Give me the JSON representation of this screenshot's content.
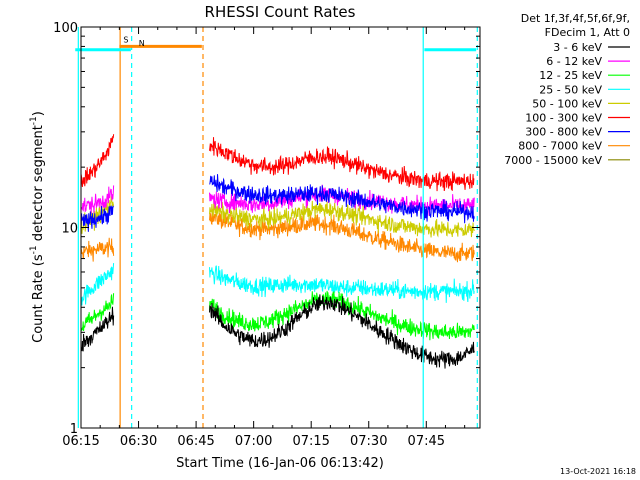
{
  "chart_data": {
    "type": "line",
    "title": "RHESSI Count Rates",
    "xlabel": "Start Time (16-Jan-06 06:13:42)",
    "ylabel_main": "Count Rate (s",
    "ylabel_sup": "-1",
    "ylabel_mid": " detector segment",
    "ylabel_sup2": "-1",
    "ylabel_end": ")",
    "y_scale": "log",
    "ylim": [
      1,
      100
    ],
    "xlim_minutes": [
      375,
      479
    ],
    "x_ticks": [
      {
        "minute": 375,
        "label": "06:15"
      },
      {
        "minute": 390,
        "label": "06:30"
      },
      {
        "minute": 405,
        "label": "06:45"
      },
      {
        "minute": 420,
        "label": "07:00"
      },
      {
        "minute": 435,
        "label": "07:15"
      },
      {
        "minute": 450,
        "label": "07:30"
      },
      {
        "minute": 465,
        "label": "07:45"
      }
    ],
    "y_ticks": [
      {
        "value": 1,
        "label": "1"
      },
      {
        "value": 10,
        "label": "10"
      },
      {
        "value": 100,
        "label": "100"
      }
    ],
    "legend_header": [
      "Det 1f,3f,4f,5f,6f,9f,",
      "FDecim 1, Att 0"
    ],
    "legend_placement": "right",
    "series": [
      {
        "name": "3 - 6 keV",
        "color": "#000000",
        "segments": [
          {
            "x": [
              374,
              376,
              378,
              380,
              382,
              383.5
            ],
            "y": [
              2.5,
              2.7,
              2.9,
              3.1,
              3.4,
              3.7
            ]
          },
          {
            "x": [
              408.5,
              412,
              416,
              420,
              424,
              428,
              432,
              436,
              440,
              444,
              448,
              452,
              456,
              460,
              464,
              468,
              472,
              475,
              477.5
            ],
            "y": [
              4.0,
              3.3,
              2.9,
              2.7,
              2.8,
              3.1,
              3.6,
              4.1,
              4.3,
              3.9,
              3.5,
              3.1,
              2.8,
              2.5,
              2.3,
              2.2,
              2.2,
              2.3,
              2.5
            ]
          }
        ]
      },
      {
        "name": "6 - 12 keV",
        "color": "#ff00ff",
        "segments": [
          {
            "x": [
              374,
              376,
              378,
              380,
              382,
              383.5
            ],
            "y": [
              12.5,
              12.8,
              13.0,
              13.4,
              14.0,
              14.8
            ]
          },
          {
            "x": [
              408.5,
              412,
              416,
              420,
              424,
              428,
              432,
              436,
              440,
              444,
              448,
              452,
              456,
              460,
              464,
              468,
              472,
              475,
              477.5
            ],
            "y": [
              14.0,
              13.5,
              13.3,
              13.0,
              13.2,
              13.6,
              14.2,
              14.6,
              14.6,
              14.2,
              13.8,
              13.5,
              13.2,
              13.0,
              12.9,
              12.8,
              12.8,
              12.8,
              12.9
            ]
          }
        ]
      },
      {
        "name": "12 - 25 keV",
        "color": "#00ff00",
        "segments": [
          {
            "x": [
              374,
              376,
              378,
              380,
              382,
              383.5
            ],
            "y": [
              3.0,
              3.3,
              3.5,
              3.8,
              4.0,
              4.3
            ]
          },
          {
            "x": [
              408.5,
              412,
              416,
              420,
              424,
              428,
              432,
              436,
              440,
              444,
              448,
              452,
              456,
              460,
              464,
              468,
              472,
              475,
              477.5
            ],
            "y": [
              4.2,
              3.7,
              3.4,
              3.3,
              3.4,
              3.7,
              4.0,
              4.3,
              4.4,
              4.2,
              3.9,
              3.6,
              3.4,
              3.2,
              3.1,
              3.0,
              3.0,
              3.0,
              3.1
            ]
          }
        ]
      },
      {
        "name": "25 - 50 keV",
        "color": "#00ffff",
        "segments": [
          {
            "x": [
              374,
              376,
              378,
              380,
              382,
              383.5
            ],
            "y": [
              4.2,
              4.6,
              5.0,
              5.4,
              5.8,
              6.2
            ]
          },
          {
            "x": [
              408.5,
              412,
              416,
              420,
              424,
              428,
              432,
              436,
              440,
              444,
              448,
              452,
              456,
              460,
              464,
              468,
              472,
              475,
              477.5
            ],
            "y": [
              6.0,
              5.6,
              5.3,
              5.1,
              5.1,
              5.2,
              5.2,
              5.2,
              5.1,
              5.0,
              5.0,
              4.9,
              4.9,
              4.8,
              4.8,
              4.8,
              4.8,
              4.8,
              4.9
            ]
          }
        ]
      },
      {
        "name": "50 - 100 keV",
        "color": "#cccc00",
        "segments": [
          {
            "x": [
              374,
              376,
              378,
              380,
              382,
              383.5
            ],
            "y": [
              10.0,
              10.5,
              11.0,
              11.8,
              12.5,
              13.5
            ]
          },
          {
            "x": [
              408.5,
              412,
              416,
              420,
              424,
              428,
              432,
              436,
              440,
              444,
              448,
              452,
              456,
              460,
              464,
              468,
              472,
              475,
              477.5
            ],
            "y": [
              12.5,
              11.8,
              11.3,
              11.0,
              11.0,
              11.3,
              11.8,
              12.3,
              12.3,
              11.8,
              11.3,
              10.8,
              10.4,
              10.1,
              9.9,
              9.8,
              9.7,
              9.7,
              9.8
            ]
          }
        ]
      },
      {
        "name": "100 - 300 keV",
        "color": "#ff0000",
        "segments": [
          {
            "x": [
              374,
              376,
              378,
              380,
              382,
              383.5
            ],
            "y": [
              16.5,
              17.5,
              19.0,
              21.0,
              24.0,
              28.0
            ]
          },
          {
            "x": [
              408.5,
              412,
              416,
              420,
              424,
              428,
              432,
              436,
              440,
              444,
              448,
              452,
              456,
              460,
              464,
              468,
              472,
              475,
              477.5
            ],
            "y": [
              26.0,
              24.0,
              22.0,
              20.5,
              20.0,
              20.3,
              21.5,
              22.5,
              22.5,
              21.5,
              20.0,
              19.0,
              18.2,
              17.6,
              17.2,
              17.0,
              17.0,
              17.0,
              17.2
            ]
          }
        ]
      },
      {
        "name": "300 - 800 keV",
        "color": "#0000ff",
        "segments": [
          {
            "x": [
              374,
              376,
              378,
              380,
              382,
              383.5
            ],
            "y": [
              10.5,
              10.7,
              11.0,
              11.2,
              11.6,
              12.2
            ]
          },
          {
            "x": [
              408.5,
              412,
              416,
              420,
              424,
              428,
              432,
              436,
              440,
              444,
              448,
              452,
              456,
              460,
              464,
              468,
              472,
              475,
              477.5
            ],
            "y": [
              17.0,
              16.0,
              15.2,
              14.6,
              14.4,
              14.4,
              14.6,
              14.8,
              14.6,
              14.2,
              13.7,
              13.2,
              12.8,
              12.5,
              12.3,
              12.1,
              12.0,
              12.0,
              12.0
            ]
          }
        ]
      },
      {
        "name": "800 - 7000 keV",
        "color": "#ff8800",
        "segments": [
          {
            "x": [
              374,
              376,
              378,
              380,
              382,
              383.5
            ],
            "y": [
              7.5,
              7.6,
              7.7,
              7.8,
              7.9,
              8.0
            ]
          },
          {
            "x": [
              408.5,
              412,
              416,
              420,
              424,
              428,
              432,
              436,
              440,
              444,
              448,
              452,
              456,
              460,
              464,
              468,
              472,
              475,
              477.5
            ],
            "y": [
              11.5,
              10.8,
              10.2,
              9.9,
              9.8,
              10.0,
              10.3,
              10.5,
              10.3,
              9.8,
              9.3,
              8.8,
              8.4,
              8.0,
              7.7,
              7.5,
              7.4,
              7.4,
              7.5
            ]
          }
        ]
      },
      {
        "name": "7000 - 15000 keV",
        "color": "#888800",
        "segments": []
      }
    ],
    "annotations": {
      "bars": [
        {
          "label": "",
          "color": "#00ffff",
          "y": 77,
          "x_start": 373.5,
          "x_end": 388
        },
        {
          "label": "S",
          "color": "#ff8800",
          "y": 80,
          "x_start": 385,
          "x_end": 406.5
        },
        {
          "label": "N",
          "color": "#00ffff",
          "y": 77,
          "x_start": 389,
          "x_end": 389
        },
        {
          "label": "",
          "color": "#00ffff",
          "y": 77,
          "x_start": 464.5,
          "x_end": 478
        }
      ],
      "vlines": [
        {
          "x": 374.3,
          "color": "#00ffff",
          "style": "solid"
        },
        {
          "x": 385.2,
          "color": "#ff8800",
          "style": "solid"
        },
        {
          "x": 388.2,
          "color": "#00ffff",
          "style": "dashed"
        },
        {
          "x": 406.8,
          "color": "#ff8800",
          "style": "dashed"
        },
        {
          "x": 464.2,
          "color": "#00ffff",
          "style": "solid"
        },
        {
          "x": 478.3,
          "color": "#00ffff",
          "style": "dashed"
        }
      ]
    },
    "footer_timestamp": "13-Oct-2021 16:18"
  }
}
